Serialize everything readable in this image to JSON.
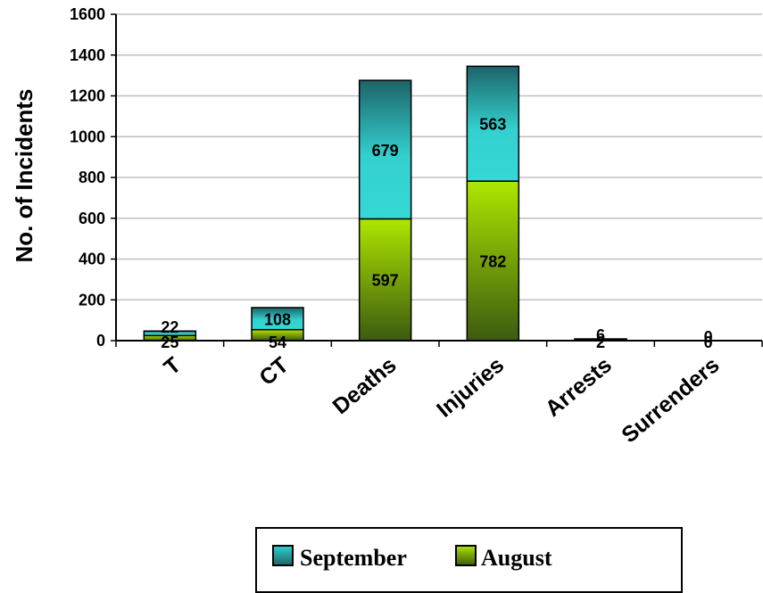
{
  "chart_data": {
    "type": "bar",
    "stacked": true,
    "categories": [
      "T",
      "CT",
      "Deaths",
      "Injuries",
      "Arrests",
      "Surrenders"
    ],
    "series": [
      {
        "name": "August",
        "values": [
          25,
          54,
          597,
          782,
          2,
          0
        ],
        "color": "#6b8e00"
      },
      {
        "name": "September",
        "values": [
          22,
          108,
          679,
          563,
          6,
          0
        ],
        "color": "#1fb3b3"
      }
    ],
    "title": "",
    "xlabel": "",
    "ylabel": "No. of Incidents",
    "ylim": [
      0,
      1600
    ],
    "yticks": [
      0,
      200,
      400,
      600,
      800,
      1000,
      1200,
      1400,
      1600
    ],
    "grid": true,
    "legend": {
      "position": "bottom",
      "order": [
        "September",
        "August"
      ]
    }
  }
}
